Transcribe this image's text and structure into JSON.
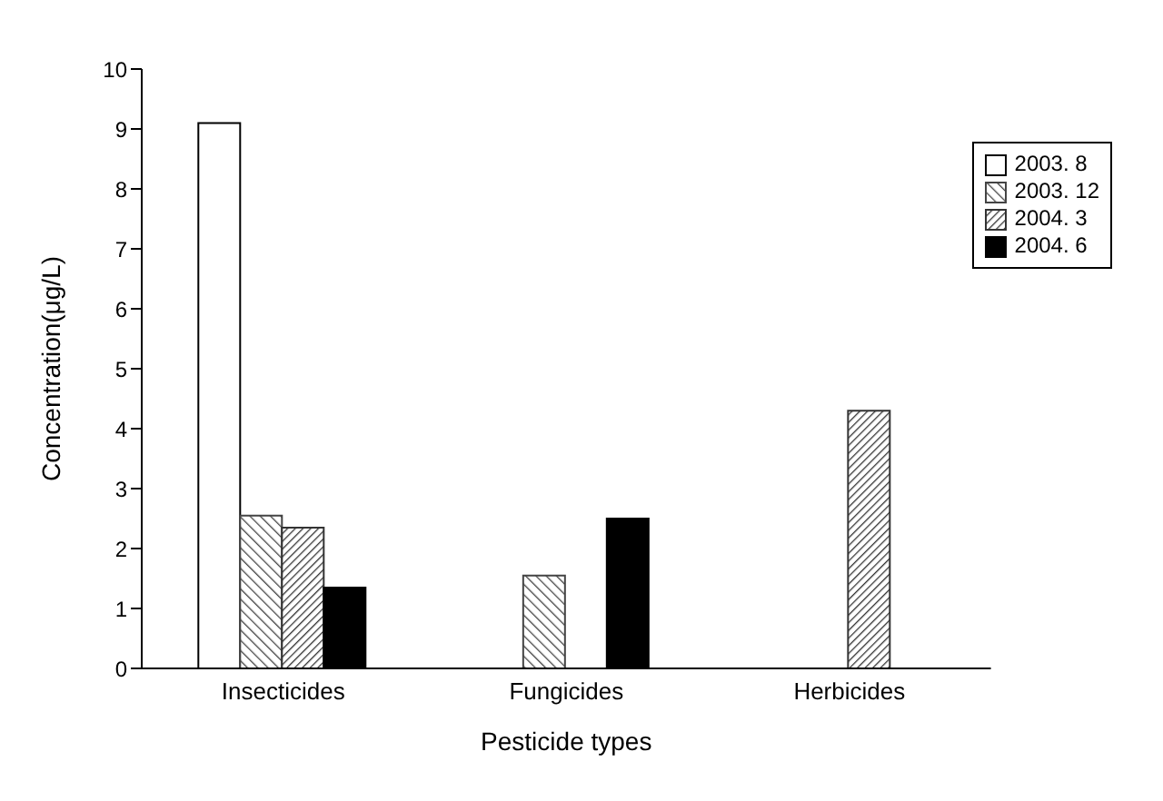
{
  "chart_data": {
    "type": "bar",
    "xlabel": "Pesticide types",
    "ylabel": "Concentration(μg/L)",
    "categories": [
      "Insecticides",
      "Fungicides",
      "Herbicides"
    ],
    "series": [
      {
        "name": "2003. 8",
        "color": "#ffffff",
        "values": [
          9.1,
          null,
          null
        ]
      },
      {
        "name": "2003. 12",
        "color": "#444444",
        "values": [
          2.55,
          1.55,
          null
        ]
      },
      {
        "name": "2004. 3",
        "color": "#333333",
        "values": [
          2.35,
          null,
          4.3
        ]
      },
      {
        "name": "2004. 6",
        "color": "#000000",
        "values": [
          1.35,
          2.5,
          null
        ]
      }
    ],
    "ylim": [
      0,
      10
    ],
    "yticks": [
      0,
      1,
      2,
      3,
      4,
      5,
      6,
      7,
      8,
      9,
      10
    ],
    "grid": false,
    "legend": "top right"
  }
}
